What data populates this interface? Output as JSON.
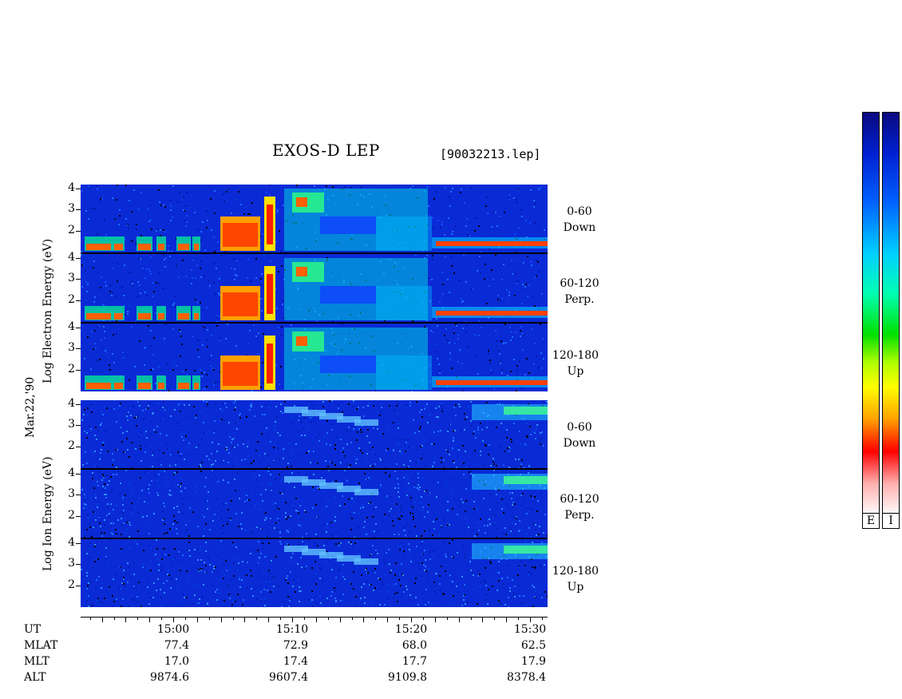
{
  "chart_data": {
    "type": "heatmap",
    "title": "EXOS-D LEP",
    "file_label": "[90032213.lep]",
    "date_label": "Mar.22,'90",
    "electron_axis_label": "Log Electron Energy (eV)",
    "ion_axis_label": "Log Ion Energy (eV)",
    "y_ticks": [
      "4",
      "3",
      "2"
    ],
    "ylim": [
      1,
      4.1
    ],
    "x_time_ticks": [
      "15:00",
      "15:10",
      "15:20",
      "15:30"
    ],
    "electron_panels": [
      {
        "line1": "0-60",
        "line2": "Down"
      },
      {
        "line1": "60-120",
        "line2": "Perp."
      },
      {
        "line1": "120-180",
        "line2": "Up"
      }
    ],
    "ion_panels": [
      {
        "line1": "0-60",
        "line2": "Down"
      },
      {
        "line1": "60-120",
        "line2": "Perp."
      },
      {
        "line1": "120-180",
        "line2": "Up"
      }
    ],
    "ephemeris": {
      "rows": [
        {
          "name": "UT",
          "values": [
            "15:00",
            "15:10",
            "15:20",
            "15:30"
          ]
        },
        {
          "name": "MLAT",
          "values": [
            "77.4",
            "72.9",
            "68.0",
            "62.5"
          ]
        },
        {
          "name": "MLT",
          "values": [
            "17.0",
            "17.4",
            "17.7",
            "17.9"
          ]
        },
        {
          "name": "ALT",
          "values": [
            "9874.6",
            "9607.4",
            "9109.8",
            "8378.4"
          ]
        }
      ]
    },
    "colorbars": [
      {
        "label": "E"
      },
      {
        "label": "I"
      }
    ],
    "colors": {
      "background": "#0a2ad6",
      "low": "#0000ff",
      "mid": "#00ff80",
      "high": "#ff0000"
    }
  }
}
